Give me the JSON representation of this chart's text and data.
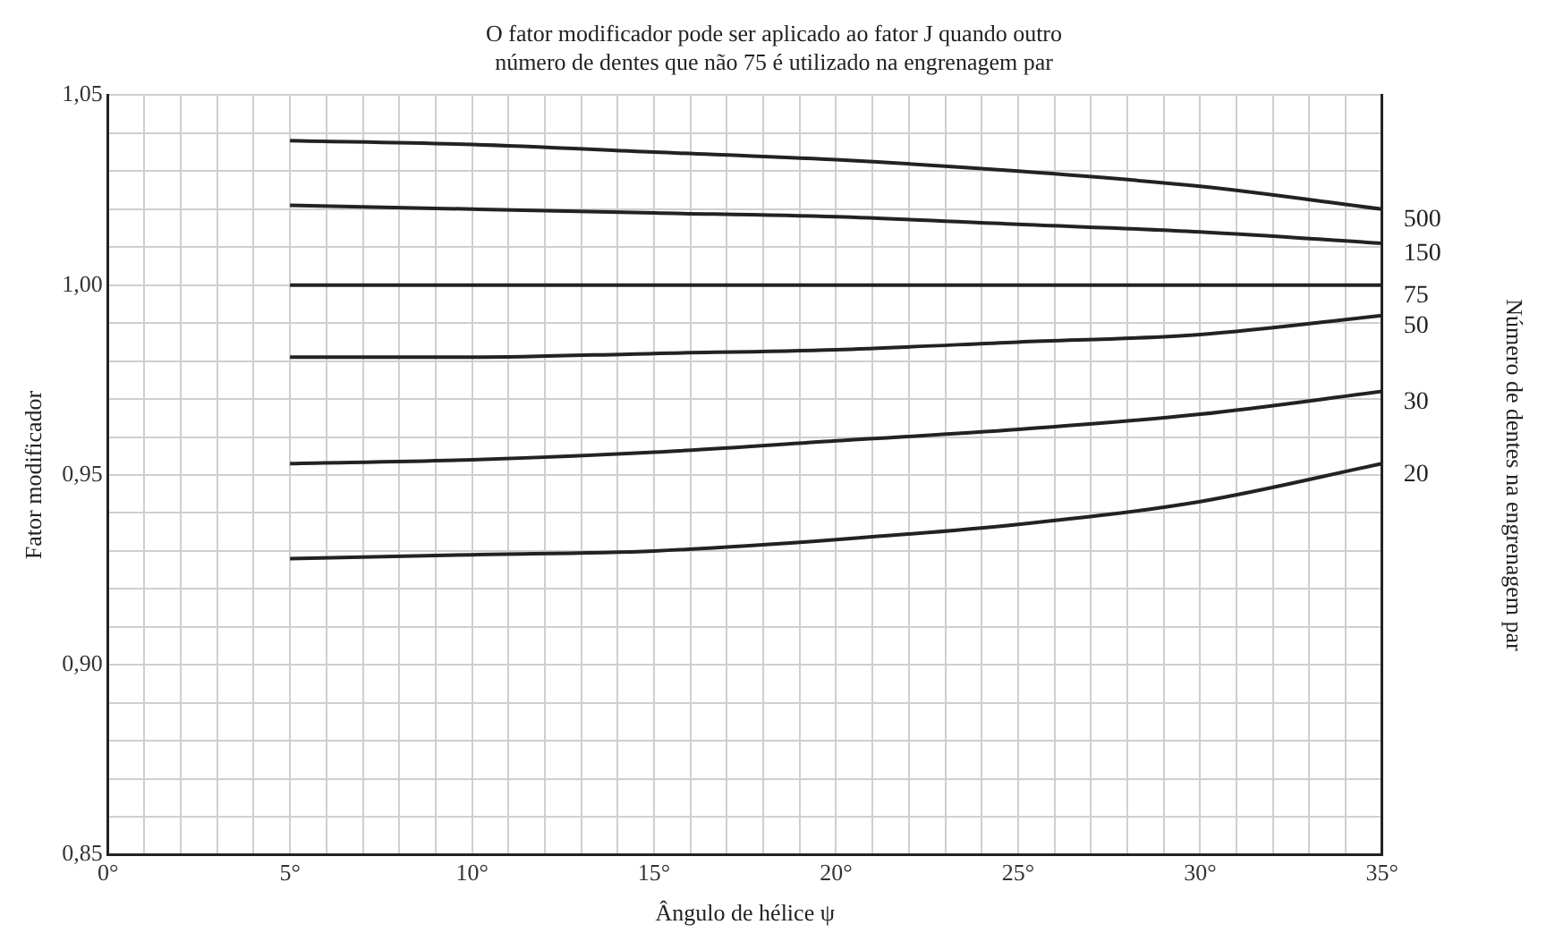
{
  "chart_data": {
    "type": "line",
    "title": "O fator modificador pode ser aplicado ao fator J quando outro\nnúmero de dentes que não 75 é utilizado na engrenagem par",
    "xlabel": "Ângulo de hélice ψ",
    "ylabel": "Fator modificador",
    "y2label": "Número de dentes na engrenagem par",
    "x": [
      5,
      10,
      15,
      20,
      25,
      30,
      35
    ],
    "series": [
      {
        "name": "500",
        "color": "#222222",
        "values": [
          1.038,
          1.037,
          1.035,
          1.033,
          1.03,
          1.026,
          1.02
        ]
      },
      {
        "name": "150",
        "color": "#222222",
        "values": [
          1.021,
          1.02,
          1.019,
          1.018,
          1.016,
          1.014,
          1.011
        ]
      },
      {
        "name": "75",
        "color": "#222222",
        "values": [
          1.0,
          1.0,
          1.0,
          1.0,
          1.0,
          1.0,
          1.0
        ]
      },
      {
        "name": "50",
        "color": "#222222",
        "values": [
          0.981,
          0.981,
          0.982,
          0.983,
          0.985,
          0.987,
          0.992
        ]
      },
      {
        "name": "30",
        "color": "#222222",
        "values": [
          0.953,
          0.954,
          0.956,
          0.959,
          0.962,
          0.966,
          0.972
        ]
      },
      {
        "name": "20",
        "color": "#222222",
        "values": [
          0.928,
          0.929,
          0.93,
          0.933,
          0.937,
          0.943,
          0.953
        ]
      }
    ],
    "xlim": [
      0,
      35
    ],
    "xticks": [
      {
        "value": 0,
        "label": "0°"
      },
      {
        "value": 1,
        "label": null
      },
      {
        "value": 2,
        "label": null
      },
      {
        "value": 3,
        "label": null
      },
      {
        "value": 4,
        "label": null
      },
      {
        "value": 5,
        "label": "5°"
      },
      {
        "value": 6,
        "label": null
      },
      {
        "value": 7,
        "label": null
      },
      {
        "value": 8,
        "label": null
      },
      {
        "value": 9,
        "label": null
      },
      {
        "value": 10,
        "label": "10°"
      },
      {
        "value": 11,
        "label": null
      },
      {
        "value": 12,
        "label": null
      },
      {
        "value": 13,
        "label": null
      },
      {
        "value": 14,
        "label": null
      },
      {
        "value": 15,
        "label": "15°"
      },
      {
        "value": 16,
        "label": null
      },
      {
        "value": 17,
        "label": null
      },
      {
        "value": 18,
        "label": null
      },
      {
        "value": 19,
        "label": null
      },
      {
        "value": 20,
        "label": "20°"
      },
      {
        "value": 21,
        "label": null
      },
      {
        "value": 22,
        "label": null
      },
      {
        "value": 23,
        "label": null
      },
      {
        "value": 24,
        "label": null
      },
      {
        "value": 25,
        "label": "25°"
      },
      {
        "value": 26,
        "label": null
      },
      {
        "value": 27,
        "label": null
      },
      {
        "value": 28,
        "label": null
      },
      {
        "value": 29,
        "label": null
      },
      {
        "value": 30,
        "label": "30°"
      },
      {
        "value": 31,
        "label": null
      },
      {
        "value": 32,
        "label": null
      },
      {
        "value": 33,
        "label": null
      },
      {
        "value": 34,
        "label": null
      },
      {
        "value": 35,
        "label": "35°"
      }
    ],
    "ylim": [
      0.85,
      1.05
    ],
    "yticks": [
      {
        "value": 0.85,
        "label": "0,85"
      },
      {
        "value": 0.86,
        "label": null
      },
      {
        "value": 0.87,
        "label": null
      },
      {
        "value": 0.88,
        "label": null
      },
      {
        "value": 0.89,
        "label": null
      },
      {
        "value": 0.9,
        "label": "0,90"
      },
      {
        "value": 0.91,
        "label": null
      },
      {
        "value": 0.92,
        "label": null
      },
      {
        "value": 0.93,
        "label": null
      },
      {
        "value": 0.94,
        "label": null
      },
      {
        "value": 0.95,
        "label": "0,95"
      },
      {
        "value": 0.96,
        "label": null
      },
      {
        "value": 0.97,
        "label": null
      },
      {
        "value": 0.98,
        "label": null
      },
      {
        "value": 0.99,
        "label": null
      },
      {
        "value": 1.0,
        "label": "1,00"
      },
      {
        "value": 1.01,
        "label": null
      },
      {
        "value": 1.02,
        "label": null
      },
      {
        "value": 1.03,
        "label": null
      },
      {
        "value": 1.04,
        "label": null
      },
      {
        "value": 1.05,
        "label": "1,05"
      }
    ],
    "grid": true,
    "legend": false,
    "marker": "none",
    "line_style": "solid"
  }
}
